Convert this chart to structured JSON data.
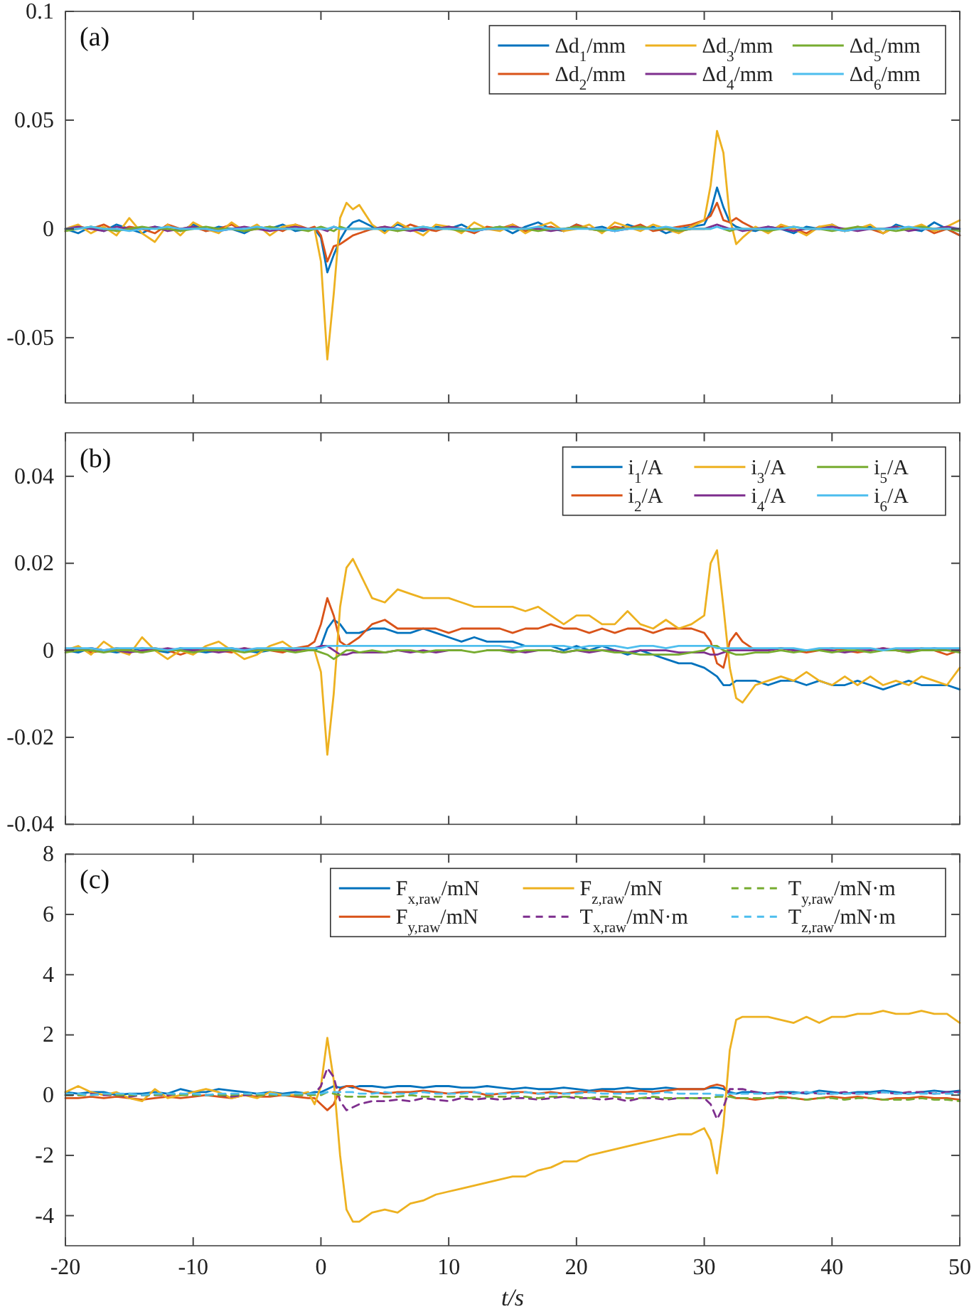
{
  "chart_data": [
    {
      "type": "line",
      "annotations": [
        "(a)"
      ],
      "legend": "top right",
      "tick_labels": "y",
      "x": [
        -20,
        -19,
        -18,
        -17,
        -16,
        -15,
        -14,
        -13,
        -12,
        -11,
        -10,
        -9,
        -8,
        -7,
        -6,
        -5,
        -4,
        -3,
        -2,
        -1,
        -0.5,
        0,
        0.5,
        1,
        1.5,
        2,
        2.5,
        3,
        4,
        5,
        6,
        7,
        8,
        9,
        10,
        11,
        12,
        13,
        14,
        15,
        16,
        17,
        18,
        19,
        20,
        21,
        22,
        23,
        24,
        25,
        26,
        27,
        28,
        29,
        30,
        30.5,
        31,
        31.5,
        32,
        32.5,
        33,
        34,
        35,
        36,
        37,
        38,
        39,
        40,
        41,
        42,
        43,
        44,
        45,
        46,
        47,
        48,
        49,
        50
      ],
      "xlim": [
        -20,
        50
      ],
      "xticks": [
        -20,
        -10,
        0,
        10,
        20,
        30,
        40,
        50
      ],
      "ylim": [
        -0.08,
        0.1
      ],
      "yticks": [
        -0.05,
        0,
        0.05,
        0.1
      ],
      "series": [
        {
          "name": "Δd$_{1}$/mm",
          "color": "#0072bd",
          "values": [
            0,
            -0.002,
            0.001,
            -0.001,
            0.002,
            0,
            -0.002,
            0.001,
            0,
            -0.001,
            0.002,
            -0.001,
            0.001,
            0,
            -0.002,
            0.001,
            0,
            0.002,
            -0.001,
            0,
            0,
            -0.004,
            -0.02,
            -0.012,
            -0.005,
            0,
            0.003,
            0.004,
            0.001,
            -0.001,
            0.002,
            0,
            -0.001,
            0.001,
            0,
            0.002,
            -0.001,
            0,
            0.001,
            -0.002,
            0.001,
            0.003,
            0,
            -0.001,
            0.002,
            0,
            0.001,
            -0.001,
            0.002,
            0,
            0.001,
            -0.002,
            0,
            0.001,
            0.002,
            0.008,
            0.019,
            0.01,
            0.003,
            0.001,
            0,
            -0.001,
            0.001,
            0,
            -0.002,
            0.001,
            0,
            0.002,
            -0.001,
            0,
            0.001,
            -0.002,
            0.002,
            0,
            -0.001,
            0.003,
            0,
            -0.003
          ]
        },
        {
          "name": "Δd$_{2}$/mm",
          "color": "#d95319",
          "values": [
            -0.001,
            0.001,
            0,
            0.002,
            -0.001,
            0.001,
            0,
            -0.002,
            0.002,
            0,
            0.001,
            -0.001,
            0,
            0.002,
            -0.001,
            0,
            0.001,
            -0.001,
            0.002,
            0,
            0.001,
            -0.003,
            -0.015,
            -0.008,
            -0.007,
            -0.005,
            -0.003,
            -0.002,
            0,
            0.001,
            -0.001,
            0.002,
            0,
            -0.001,
            0.001,
            0,
            -0.002,
            0.001,
            0,
            0.002,
            -0.001,
            0,
            0.001,
            -0.001,
            0.002,
            0,
            -0.001,
            0.001,
            0,
            0.002,
            -0.001,
            0,
            0.001,
            0.002,
            0.004,
            0.006,
            0.012,
            0.004,
            0.003,
            0.005,
            0.003,
            0,
            -0.001,
            0.001,
            0,
            -0.002,
            0.001,
            0,
            -0.001,
            0.001,
            0,
            -0.002,
            0.001,
            0,
            0.001,
            -0.002,
            0,
            -0.003
          ]
        },
        {
          "name": "Δd$_{3}$/mm",
          "color": "#edb120",
          "values": [
            0,
            0.002,
            -0.002,
            0.001,
            -0.003,
            0.005,
            -0.002,
            -0.006,
            0.002,
            -0.003,
            0.003,
            0,
            -0.002,
            0.003,
            -0.001,
            0.002,
            -0.003,
            0.001,
            0.002,
            -0.001,
            0,
            -0.015,
            -0.06,
            -0.03,
            0.005,
            0.012,
            0.009,
            0.011,
            0.002,
            -0.002,
            0.003,
            0,
            -0.003,
            0.002,
            0.001,
            -0.002,
            0.003,
            0,
            -0.001,
            0.002,
            -0.002,
            0.001,
            0.003,
            -0.001,
            0,
            0.002,
            -0.002,
            0.003,
            0.001,
            -0.001,
            0.002,
            0,
            -0.002,
            0.001,
            0.004,
            0.02,
            0.045,
            0.035,
            0.005,
            -0.007,
            -0.004,
            0.001,
            -0.002,
            0.002,
            0,
            -0.003,
            0.001,
            0.002,
            -0.001,
            0,
            0.002,
            -0.002,
            0.001,
            0,
            0.002,
            -0.001,
            0.001,
            0.004
          ]
        },
        {
          "name": "Δd$_{4}$/mm",
          "color": "#7e2f8e",
          "values": [
            0,
            0.001,
            0,
            -0.001,
            0.001,
            0,
            0,
            0.001,
            -0.001,
            0,
            0.001,
            0,
            -0.001,
            0,
            0.001,
            0,
            -0.001,
            0,
            0.001,
            0,
            0,
            0,
            -0.001,
            0.001,
            0,
            0,
            0,
            0,
            0,
            0.001,
            0,
            -0.001,
            0,
            0,
            0.001,
            0,
            -0.001,
            0,
            0,
            0.001,
            0,
            0,
            -0.001,
            0,
            0.001,
            0,
            0,
            -0.001,
            0,
            0.001,
            0,
            0,
            -0.001,
            0,
            0,
            0.001,
            0.002,
            0.001,
            0,
            0,
            -0.001,
            0,
            0.001,
            0,
            -0.001,
            0,
            0,
            0.001,
            0,
            -0.001,
            0,
            0,
            0.001,
            -0.001,
            0,
            0,
            0.001,
            0
          ]
        },
        {
          "name": "Δd$_{5}$/mm",
          "color": "#77ac30",
          "values": [
            -0.001,
            0,
            0.001,
            0,
            -0.001,
            0,
            0.001,
            0,
            0,
            -0.001,
            0,
            0.001,
            0,
            0,
            -0.001,
            0,
            0.001,
            0,
            0,
            -0.001,
            0,
            0.001,
            0,
            -0.001,
            0.001,
            0,
            0,
            0,
            0,
            0,
            -0.001,
            0,
            0.001,
            0,
            0,
            -0.001,
            0,
            0,
            0.001,
            0,
            0,
            -0.001,
            0,
            0,
            0.001,
            0,
            -0.001,
            0,
            0,
            0.001,
            0,
            0,
            -0.001,
            0,
            0,
            0,
            null,
            0,
            -0.001,
            0,
            0,
            0,
            -0.001,
            0,
            0.001,
            0,
            0,
            -0.001,
            0,
            0.001,
            0,
            0,
            -0.001,
            0,
            0.001,
            0,
            0,
            -0.001
          ]
        },
        {
          "name": "Δd$_{6}$/mm",
          "color": "#4dbeee",
          "values": [
            0,
            0,
            0.001,
            0,
            0,
            -0.001,
            0,
            0,
            0.001,
            0,
            0,
            0,
            -0.001,
            0,
            0,
            0.001,
            0,
            0,
            0,
            0,
            0,
            0,
            0,
            0.001,
            0,
            0,
            0,
            0,
            0,
            0,
            0,
            0,
            0.001,
            0,
            0,
            0,
            -0.001,
            0,
            0,
            0,
            0,
            0.001,
            0,
            0,
            0,
            0,
            0,
            -0.001,
            0,
            0,
            0,
            0.001,
            0,
            0,
            0,
            0,
            0.001,
            0,
            0,
            0,
            0,
            0,
            0,
            0,
            0.001,
            0,
            0,
            0,
            -0.001,
            0,
            0,
            0,
            0,
            0.001,
            0,
            0,
            0,
            0
          ]
        }
      ]
    },
    {
      "type": "line",
      "annotations": [
        "(b)"
      ],
      "legend": "top right",
      "tick_labels": "y",
      "x": [
        -20,
        -19,
        -18,
        -17,
        -16,
        -15,
        -14,
        -13,
        -12,
        -11,
        -10,
        -9,
        -8,
        -7,
        -6,
        -5,
        -4,
        -3,
        -2,
        -1,
        -0.5,
        0,
        0.5,
        1,
        1.5,
        2,
        2.5,
        3,
        4,
        5,
        6,
        7,
        8,
        9,
        10,
        11,
        12,
        13,
        14,
        15,
        16,
        17,
        18,
        19,
        20,
        21,
        22,
        23,
        24,
        25,
        26,
        27,
        28,
        29,
        30,
        30.5,
        31,
        31.5,
        32,
        32.5,
        33,
        34,
        35,
        36,
        37,
        38,
        39,
        40,
        41,
        42,
        43,
        44,
        45,
        46,
        47,
        48,
        49,
        50
      ],
      "xlim": [
        -20,
        50
      ],
      "xticks": [
        -20,
        -10,
        0,
        10,
        20,
        30,
        40,
        50
      ],
      "ylim": [
        -0.04,
        0.05
      ],
      "yticks": [
        -0.04,
        -0.02,
        0,
        0.02,
        0.04
      ],
      "series": [
        {
          "name": "i$_{1}$/A",
          "color": "#0072bd",
          "values": [
            0,
            -0.0005,
            0.0005,
            0,
            -0.0005,
            0,
            0.0005,
            0,
            -0.0005,
            0.0005,
            0,
            -0.0005,
            0,
            0.0005,
            0,
            -0.0005,
            0,
            0.0005,
            0,
            0,
            0,
            0.001,
            0.005,
            0.007,
            0.006,
            0.004,
            0.004,
            0.004,
            0.005,
            0.005,
            0.004,
            0.004,
            0.005,
            0.004,
            0.003,
            0.002,
            0.003,
            0.002,
            0.002,
            0.002,
            0.001,
            0.001,
            0.001,
            0,
            0.001,
            0,
            0.001,
            0,
            -0.001,
            0,
            -0.001,
            -0.002,
            -0.003,
            -0.003,
            -0.004,
            -0.005,
            -0.006,
            -0.008,
            -0.008,
            -0.007,
            -0.007,
            -0.007,
            -0.008,
            -0.007,
            -0.007,
            -0.008,
            -0.007,
            -0.008,
            -0.008,
            -0.007,
            -0.008,
            -0.009,
            -0.008,
            -0.007,
            -0.008,
            -0.008,
            -0.008,
            -0.009
          ]
        },
        {
          "name": "i$_{2}$/A",
          "color": "#d95319",
          "values": [
            0,
            0.0005,
            -0.0005,
            0,
            0.0005,
            0,
            -0.0005,
            0.0005,
            0,
            -0.001,
            0,
            0.0005,
            0,
            -0.0005,
            0.0005,
            0,
            0,
            -0.0005,
            0.0005,
            0.001,
            0.002,
            0.006,
            0.012,
            0.008,
            0.002,
            0.001,
            0.002,
            0.003,
            0.006,
            0.007,
            0.005,
            0.005,
            0.005,
            0.005,
            0.004,
            0.005,
            0.005,
            0.005,
            0.005,
            0.004,
            0.005,
            0.005,
            0.006,
            0.005,
            0.005,
            0.004,
            0.005,
            0.004,
            0.005,
            0.005,
            0.004,
            0.005,
            0.005,
            0.005,
            0.004,
            0.002,
            -0.003,
            -0.004,
            0.002,
            0.004,
            0.002,
            0,
            0,
            0.0005,
            0,
            -0.0005,
            0,
            0.0005,
            0,
            -0.0005,
            0,
            0.0005,
            0,
            -0.0005,
            0.0005,
            0,
            -0.001,
            0
          ]
        },
        {
          "name": "i$_{3}$/A",
          "color": "#edb120",
          "values": [
            0,
            0.001,
            -0.001,
            0.002,
            0,
            -0.001,
            0.003,
            0,
            -0.002,
            0,
            -0.001,
            0.001,
            0.002,
            0,
            -0.002,
            -0.001,
            0.001,
            0.002,
            0,
            0,
            0,
            -0.005,
            -0.024,
            -0.01,
            0.01,
            0.019,
            0.021,
            0.018,
            0.012,
            0.011,
            0.014,
            0.013,
            0.012,
            0.012,
            0.012,
            0.011,
            0.01,
            0.01,
            0.01,
            0.01,
            0.009,
            0.01,
            0.008,
            0.006,
            0.008,
            0.008,
            0.006,
            0.006,
            0.009,
            0.006,
            0.005,
            0.007,
            0.005,
            0.006,
            0.008,
            0.02,
            0.023,
            0.01,
            -0.004,
            -0.011,
            -0.012,
            -0.008,
            -0.007,
            -0.006,
            -0.007,
            -0.005,
            -0.007,
            -0.008,
            -0.006,
            -0.008,
            -0.006,
            -0.008,
            -0.007,
            -0.008,
            -0.006,
            -0.007,
            -0.008,
            -0.004
          ]
        },
        {
          "name": "i$_{4}$/A",
          "color": "#7e2f8e",
          "values": [
            0,
            0,
            0.0005,
            0,
            0,
            -0.0005,
            0,
            0,
            0.0005,
            0,
            0,
            0,
            -0.0005,
            0,
            0.0005,
            0,
            0,
            0,
            0,
            0.0005,
            0.0005,
            0.001,
            0.001,
            0,
            -0.001,
            -0.001,
            -0.0005,
            -0.0005,
            -0.0005,
            -0.0005,
            0,
            -0.0005,
            0,
            -0.0005,
            0,
            0,
            null,
            0,
            0,
            0,
            -0.0005,
            0,
            0,
            -0.0005,
            0,
            -0.0005,
            0,
            0,
            -0.0005,
            0,
            0,
            0,
            -0.0005,
            -0.0005,
            -0.0005,
            -0.001,
            -0.001,
            -0.0005,
            0,
            0,
            0,
            0,
            0,
            0.0005,
            0,
            0,
            0,
            0,
            -0.0005,
            0,
            0,
            0.0005,
            0,
            0,
            0,
            0.0005,
            0,
            0
          ]
        },
        {
          "name": "i$_{5}$/A",
          "color": "#77ac30",
          "values": [
            -0.0005,
            0,
            0,
            -0.0005,
            0,
            0,
            -0.0005,
            0,
            0,
            0,
            -0.0005,
            0,
            0,
            0,
            -0.0005,
            0,
            0,
            0,
            -0.0005,
            0,
            0,
            -0.0005,
            -0.001,
            -0.002,
            -0.001,
            0,
            0,
            -0.0005,
            0,
            -0.0005,
            0,
            0,
            -0.0005,
            0,
            0,
            0,
            -0.0005,
            0,
            0,
            -0.0005,
            0,
            0,
            0,
            -0.0005,
            0,
            0,
            0,
            -0.0005,
            -0.0005,
            -0.001,
            -0.001,
            -0.001,
            -0.001,
            -0.0005,
            0,
            0.001,
            0.001,
            0,
            -0.0005,
            -0.001,
            -0.001,
            -0.0005,
            -0.0005,
            0,
            -0.0005,
            0,
            0,
            -0.0005,
            0,
            0,
            -0.0005,
            0,
            0,
            -0.0005,
            0,
            0,
            0,
            -0.0005
          ]
        },
        {
          "name": "i$_{6}$/A",
          "color": "#4dbeee",
          "values": [
            0.0005,
            0.0005,
            0.0005,
            0,
            0.0005,
            0.0005,
            0.0005,
            0.0005,
            0,
            0.0005,
            0.0005,
            0.0005,
            0.0005,
            0.0005,
            0,
            0.0005,
            0.0005,
            0.0005,
            0.0005,
            0.0005,
            0.0005,
            0.0005,
            0.001,
            0.001,
            0.001,
            0.001,
            0.001,
            0.001,
            0.001,
            0.001,
            0.001,
            0.001,
            0.001,
            0.001,
            0.001,
            0.001,
            0.001,
            0.001,
            0.001,
            0.0005,
            0.001,
            0.001,
            0.001,
            0.001,
            0.0005,
            0.001,
            0.001,
            0.001,
            0.0005,
            0.001,
            0.001,
            0.0005,
            0.001,
            0.001,
            0.001,
            0.001,
            0.0005,
            0.0005,
            0.0005,
            0.0005,
            0.0005,
            0.0005,
            0.0005,
            0.0005,
            0.0005,
            0,
            0.0005,
            0.0005,
            0.0005,
            0.0005,
            0.0005,
            0,
            0.0005,
            0.0005,
            0.0005,
            0.0005,
            0.0005,
            0.0005
          ]
        }
      ]
    },
    {
      "type": "line",
      "annotations": [
        "(c)"
      ],
      "legend": "top right",
      "xlabel": "t/s",
      "x": [
        -20,
        -19,
        -18,
        -17,
        -16,
        -15,
        -14,
        -13,
        -12,
        -11,
        -10,
        -9,
        -8,
        -7,
        -6,
        -5,
        -4,
        -3,
        -2,
        -1,
        -0.5,
        0,
        0.5,
        1,
        1.5,
        2,
        2.5,
        3,
        4,
        5,
        6,
        7,
        8,
        9,
        10,
        11,
        12,
        13,
        14,
        15,
        16,
        17,
        18,
        19,
        20,
        21,
        22,
        23,
        24,
        25,
        26,
        27,
        28,
        29,
        30,
        30.5,
        31,
        31.5,
        32,
        32.5,
        33,
        34,
        35,
        36,
        37,
        38,
        39,
        40,
        41,
        42,
        43,
        44,
        45,
        46,
        47,
        48,
        49,
        50
      ],
      "xlim": [
        -20,
        50
      ],
      "xticks": [
        -20,
        -10,
        0,
        10,
        20,
        30,
        40,
        50
      ],
      "ylim": [
        -5,
        8
      ],
      "yticks": [
        -4,
        -2,
        0,
        2,
        4,
        6,
        8
      ],
      "series": [
        {
          "name": "F$_{x,raw}$/mN",
          "color": "#0072bd",
          "values": [
            0.1,
            0.05,
            0.1,
            0.1,
            0,
            0.05,
            0.05,
            0.1,
            0.05,
            0.2,
            0.1,
            0.1,
            0.2,
            0.15,
            0.1,
            0.05,
            0.1,
            0.05,
            0.1,
            0.05,
            0.1,
            0.1,
            0.2,
            0.3,
            0.25,
            0.3,
            0.25,
            0.3,
            0.3,
            0.25,
            0.3,
            0.3,
            0.25,
            0.3,
            0.3,
            0.25,
            0.25,
            0.3,
            0.25,
            0.2,
            0.25,
            0.2,
            0.2,
            0.25,
            0.2,
            0.15,
            0.2,
            0.2,
            0.25,
            0.2,
            0.2,
            0.25,
            0.2,
            0.2,
            0.2,
            0.25,
            0.25,
            0.2,
            0.1,
            0.05,
            0.1,
            0.1,
            0.05,
            0.1,
            0.1,
            0.05,
            0.15,
            0.1,
            0.05,
            0.1,
            0.1,
            0.15,
            0.1,
            0.05,
            0.1,
            0.15,
            0.1,
            0.15
          ]
        },
        {
          "name": "F$_{y,raw}$/mN",
          "color": "#d95319",
          "values": [
            -0.1,
            -0.1,
            -0.05,
            -0.1,
            -0.05,
            -0.1,
            -0.15,
            -0.1,
            -0.05,
            -0.1,
            -0.05,
            0,
            -0.05,
            -0.1,
            0,
            -0.05,
            -0.05,
            0,
            -0.05,
            -0.1,
            -0.1,
            -0.3,
            -0.5,
            -0.3,
            0.2,
            0.3,
            0.3,
            0.2,
            0.1,
            0.05,
            0.1,
            0.1,
            0.15,
            0.1,
            0.05,
            0.1,
            0.1,
            0,
            0.05,
            0.1,
            0.1,
            0.05,
            0.1,
            0.05,
            0.1,
            0.1,
            0.15,
            0.1,
            0.1,
            0.15,
            0.1,
            0.15,
            0.2,
            0.2,
            0.2,
            0.3,
            0.35,
            0.3,
            0,
            -0.1,
            -0.1,
            -0.15,
            -0.1,
            -0.05,
            -0.1,
            -0.15,
            -0.1,
            -0.05,
            -0.1,
            -0.05,
            -0.1,
            -0.15,
            -0.1,
            -0.1,
            -0.05,
            -0.1,
            -0.1,
            -0.15
          ]
        },
        {
          "name": "F$_{z,raw}$/mN",
          "color": "#edb120",
          "values": [
            0.1,
            0.3,
            0.1,
            0,
            0.1,
            -0.1,
            -0.2,
            0.2,
            -0.1,
            0,
            0.1,
            0.2,
            0.1,
            -0.1,
            0,
            -0.1,
            0.1,
            0,
            0,
            0.1,
            -0.3,
            0.3,
            1.9,
            0.5,
            -2,
            -3.8,
            -4.2,
            -4.2,
            -3.9,
            -3.8,
            -3.9,
            -3.6,
            -3.5,
            -3.3,
            -3.2,
            -3.1,
            -3,
            -2.9,
            -2.8,
            -2.7,
            -2.7,
            -2.5,
            -2.4,
            -2.2,
            -2.2,
            -2,
            -1.9,
            -1.8,
            -1.7,
            -1.6,
            -1.5,
            -1.4,
            -1.3,
            -1.3,
            -1.1,
            -1.5,
            -2.6,
            -1,
            1.5,
            2.5,
            2.6,
            2.6,
            2.6,
            2.5,
            2.4,
            2.6,
            2.4,
            2.6,
            2.6,
            2.7,
            2.7,
            2.8,
            2.7,
            2.7,
            2.8,
            2.7,
            2.7,
            2.4
          ]
        },
        {
          "name": "T$_{x,raw}$/mN·m",
          "color": "#7e2f8e",
          "line_style": "dashed",
          "values": [
            0,
            0,
            0.05,
            0,
            0,
            -0.05,
            0,
            0,
            0,
            0.05,
            0,
            0,
            0,
            -0.05,
            0,
            0,
            0,
            0,
            0,
            0,
            0.05,
            0.3,
            0.9,
            0.6,
            -0.2,
            -0.5,
            -0.4,
            -0.3,
            -0.2,
            -0.2,
            -0.15,
            -0.2,
            -0.1,
            -0.15,
            -0.2,
            -0.1,
            -0.15,
            -0.1,
            -0.15,
            -0.1,
            -0.1,
            -0.15,
            -0.1,
            -0.05,
            -0.1,
            -0.1,
            -0.15,
            -0.1,
            -0.2,
            -0.1,
            -0.1,
            -0.15,
            -0.1,
            -0.1,
            -0.1,
            -0.3,
            -0.8,
            -0.4,
            0.2,
            0.2,
            0.2,
            0.1,
            0.05,
            0.1,
            0.05,
            0.1,
            0.05,
            0.05,
            0.1,
            0.05,
            0.05,
            0.1,
            0.05,
            0.1,
            0.1,
            0.05,
            0.1,
            0.1
          ]
        },
        {
          "name": "T$_{y,raw}$/mN·m",
          "color": "#77ac30",
          "line_style": "dashed",
          "values": [
            0,
            0,
            0,
            0.05,
            0,
            0,
            0,
            0,
            0.05,
            0,
            0,
            0,
            0,
            0,
            0.05,
            0,
            0,
            0,
            0,
            0,
            0,
            0,
            0.1,
            0.05,
            0,
            -0.05,
            -0.05,
            -0.05,
            -0.05,
            -0.05,
            -0.05,
            0,
            -0.05,
            -0.05,
            -0.05,
            -0.05,
            -0.05,
            -0.05,
            -0.05,
            -0.05,
            -0.05,
            -0.1,
            -0.05,
            -0.05,
            -0.05,
            -0.1,
            -0.05,
            -0.05,
            -0.1,
            -0.1,
            -0.05,
            -0.1,
            -0.1,
            -0.1,
            -0.1,
            -0.1,
            -0.05,
            -0.05,
            -0.05,
            -0.1,
            -0.1,
            -0.1,
            -0.1,
            -0.1,
            -0.1,
            -0.15,
            -0.1,
            -0.1,
            -0.15,
            -0.1,
            -0.1,
            -0.15,
            -0.15,
            -0.15,
            -0.1,
            -0.15,
            -0.15,
            -0.2
          ]
        },
        {
          "name": "T$_{z,raw}$/mN·m",
          "color": "#4dbeee",
          "line_style": "dashed",
          "values": [
            0.05,
            0.05,
            0,
            0.05,
            0.05,
            0.05,
            0,
            0.05,
            0.05,
            0.05,
            0.05,
            0,
            0.05,
            0.05,
            0.05,
            0.05,
            0.05,
            0,
            0.05,
            0.05,
            0.05,
            0.05,
            0.1,
            0.1,
            0.1,
            0.1,
            0.1,
            0.05,
            0.05,
            0.1,
            0.05,
            0.05,
            0.1,
            0.05,
            0.05,
            0.05,
            0.1,
            0.05,
            0.05,
            0.05,
            0.1,
            0.05,
            0.05,
            0.05,
            0.05,
            0.1,
            0.05,
            0.05,
            0.05,
            0.05,
            0.05,
            0.1,
            0.05,
            0.05,
            0.05,
            0.05,
            0,
            0,
            0.05,
            0.05,
            0.05,
            0.05,
            0.05,
            0.05,
            0.05,
            0.1,
            0.05,
            0.05,
            0.05,
            0.05,
            0.05,
            0.1,
            0.05,
            0.05,
            0.05,
            0.05,
            0.05,
            0.05
          ]
        }
      ]
    }
  ]
}
